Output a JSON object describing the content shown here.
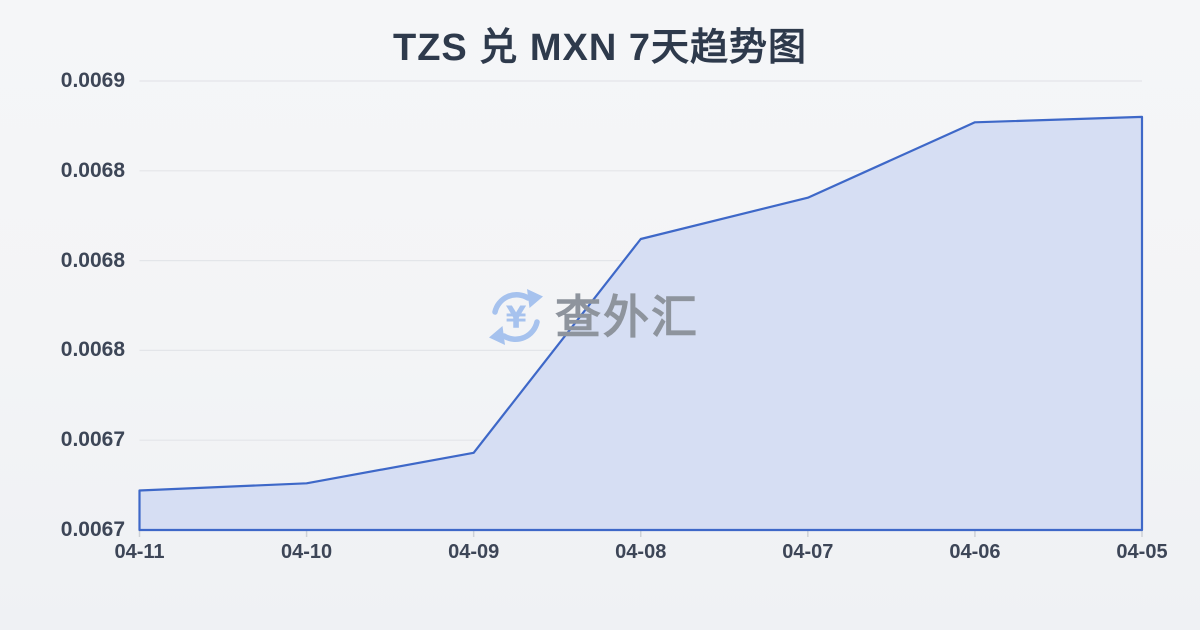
{
  "page": {
    "title": "TZS 兑 MXN 7天趋势图"
  },
  "watermark": {
    "text": "查外汇",
    "icon": "currency-exchange-yuan-icon"
  },
  "chart_data": {
    "type": "area",
    "title": "TZS 兑 MXN 7天趋势图",
    "categories": [
      "04-11",
      "04-10",
      "04-09",
      "04-08",
      "04-07",
      "04-06",
      "04-05"
    ],
    "values": [
      0.006672,
      0.006676,
      0.006693,
      0.006812,
      0.006835,
      0.006877,
      0.00688
    ],
    "series_name": "TZS/MXN",
    "xlabel": "",
    "ylabel": "",
    "x_tick_labels": [
      "04-11",
      "04-10",
      "04-09",
      "04-08",
      "04-07",
      "04-06",
      "04-05"
    ],
    "y_axis": {
      "min": 0.00665,
      "max": 0.0069,
      "tick_step": 5e-05,
      "tick_labels_top_to_bottom": [
        "0.0069",
        "0.0068",
        "0.0068",
        "0.0068",
        "0.0067",
        "0.0067"
      ]
    },
    "legend": "none",
    "grid": "horizontal-only",
    "colors": {
      "line": "#3e68c8",
      "fill": "#d6def3",
      "gridline": "#e3e5e9",
      "tick": "#cdd1d7",
      "title_text": "#2e3a4c",
      "axis_text": "#3d4657",
      "watermark_text": "#8e949d",
      "watermark_icon": "#a6c2ee",
      "background": "#f4f5f7"
    }
  }
}
